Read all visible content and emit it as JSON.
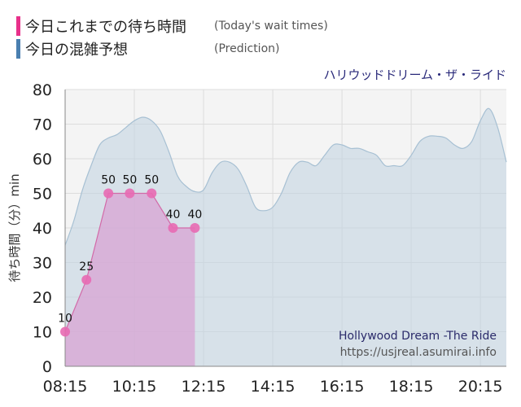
{
  "legend": {
    "today": {
      "label_jp": "今日これまでの待ち時間",
      "label_en": "(Today's wait times)",
      "color": "#e8308a"
    },
    "prediction": {
      "label_jp": "今日の混雑予想",
      "label_en": "(Prediction)",
      "color": "#4a7fb0"
    }
  },
  "chart_data": {
    "type": "area",
    "title": "ハリウッドドリーム・ザ・ライド",
    "ylabel": "待ち時間（分）min",
    "ylim": [
      0,
      80
    ],
    "yticks": [
      0,
      10,
      20,
      30,
      40,
      50,
      60,
      70,
      80
    ],
    "xlim": [
      "08:15",
      "21:00"
    ],
    "xticks": [
      "08:15",
      "10:15",
      "12:15",
      "14:15",
      "16:15",
      "18:15",
      "20:15"
    ],
    "grid": true,
    "series": [
      {
        "key": "prediction",
        "color": "#c3d4e1",
        "points": [
          [
            "08:15",
            35
          ],
          [
            "08:30",
            42
          ],
          [
            "08:45",
            51
          ],
          [
            "09:00",
            58
          ],
          [
            "09:15",
            64
          ],
          [
            "09:30",
            66
          ],
          [
            "09:45",
            67
          ],
          [
            "10:00",
            69
          ],
          [
            "10:15",
            71
          ],
          [
            "10:30",
            72
          ],
          [
            "10:45",
            71
          ],
          [
            "11:00",
            68
          ],
          [
            "11:15",
            62
          ],
          [
            "11:30",
            55
          ],
          [
            "11:45",
            52
          ],
          [
            "12:00",
            50.5
          ],
          [
            "12:15",
            51
          ],
          [
            "12:30",
            56
          ],
          [
            "12:45",
            59
          ],
          [
            "13:00",
            59
          ],
          [
            "13:15",
            57
          ],
          [
            "13:30",
            52
          ],
          [
            "13:45",
            46
          ],
          [
            "14:00",
            45
          ],
          [
            "14:15",
            46
          ],
          [
            "14:30",
            50
          ],
          [
            "14:45",
            56
          ],
          [
            "15:00",
            59
          ],
          [
            "15:15",
            59
          ],
          [
            "15:30",
            58
          ],
          [
            "15:45",
            61
          ],
          [
            "16:00",
            64
          ],
          [
            "16:15",
            64
          ],
          [
            "16:30",
            63
          ],
          [
            "16:45",
            63
          ],
          [
            "17:00",
            62
          ],
          [
            "17:15",
            61
          ],
          [
            "17:30",
            58
          ],
          [
            "17:45",
            58
          ],
          [
            "18:00",
            58
          ],
          [
            "18:15",
            61
          ],
          [
            "18:30",
            65
          ],
          [
            "18:45",
            66.5
          ],
          [
            "19:00",
            66.5
          ],
          [
            "19:15",
            66
          ],
          [
            "19:30",
            64
          ],
          [
            "19:45",
            63
          ],
          [
            "20:00",
            65
          ],
          [
            "20:15",
            71
          ],
          [
            "20:30",
            74.5
          ],
          [
            "20:45",
            69
          ],
          [
            "21:00",
            59
          ]
        ]
      },
      {
        "key": "today",
        "color": "#e8308a",
        "points": [
          [
            "08:15",
            10
          ],
          [
            "08:52",
            25
          ],
          [
            "09:30",
            50
          ],
          [
            "10:07",
            50
          ],
          [
            "10:45",
            50
          ],
          [
            "11:22",
            40
          ],
          [
            "12:00",
            40
          ]
        ],
        "labels": [
          "10",
          "25",
          "50",
          "50",
          "50",
          "40",
          "40"
        ]
      }
    ],
    "annotations": {
      "ride_name": "Hollywood Dream -The Ride",
      "source": "https://usjreal.asumirai.info"
    }
  }
}
